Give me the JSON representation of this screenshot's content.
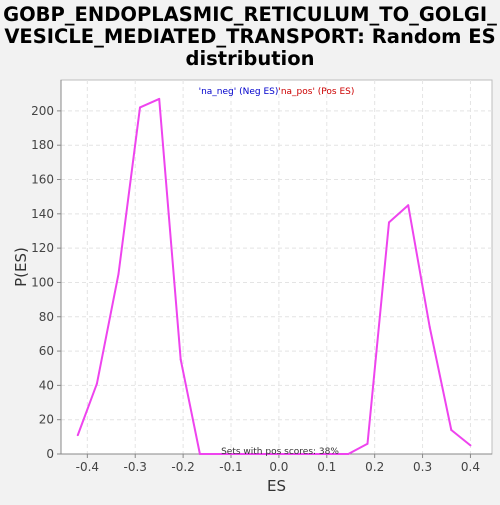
{
  "chart_data": {
    "type": "line",
    "title_lines": [
      "GOBP_ENDOPLASMIC_RETICULUM_TO_GOLGI_",
      "VESICLE_MEDIATED_TRANSPORT: Random ES",
      "distribution"
    ],
    "xlabel": "ES",
    "ylabel": "P(ES)",
    "xlim": [
      -0.455,
      0.445
    ],
    "ylim": [
      0,
      218
    ],
    "xticks": [
      -0.4,
      -0.3,
      -0.2,
      -0.1,
      0.0,
      0.1,
      0.2,
      0.3,
      0.4
    ],
    "xtick_labels": [
      "-0.4",
      "-0.3",
      "-0.2",
      "-0.1",
      "0.0",
      "0.1",
      "0.2",
      "0.3",
      "0.4"
    ],
    "yticks": [
      0,
      20,
      40,
      60,
      80,
      100,
      120,
      140,
      160,
      180,
      200
    ],
    "ytick_labels": [
      "0",
      "20",
      "40",
      "60",
      "80",
      "100",
      "120",
      "140",
      "160",
      "180",
      "200"
    ],
    "grid": true,
    "legend": {
      "placement": "top-center",
      "entries": [
        {
          "text": "'na_neg' (Neg ES)",
          "color": "#0000cc"
        },
        {
          "text": "'na_pos' (Pos ES)",
          "color": "#cc0000"
        }
      ]
    },
    "annotation": "Sets with pos scores: 38%",
    "series": [
      {
        "color": "#ee44ee",
        "x": [
          -0.42,
          -0.38,
          -0.335,
          -0.29,
          -0.25,
          -0.205,
          -0.165,
          -0.125,
          -0.08,
          -0.04,
          0.0,
          0.04,
          0.08,
          0.145,
          0.185,
          0.23,
          0.27,
          0.315,
          0.36,
          0.4
        ],
        "y": [
          11,
          41,
          105,
          202,
          207,
          55,
          0,
          0,
          0,
          0,
          0,
          0,
          0,
          0,
          6,
          135,
          145,
          74,
          14,
          5
        ]
      }
    ]
  }
}
